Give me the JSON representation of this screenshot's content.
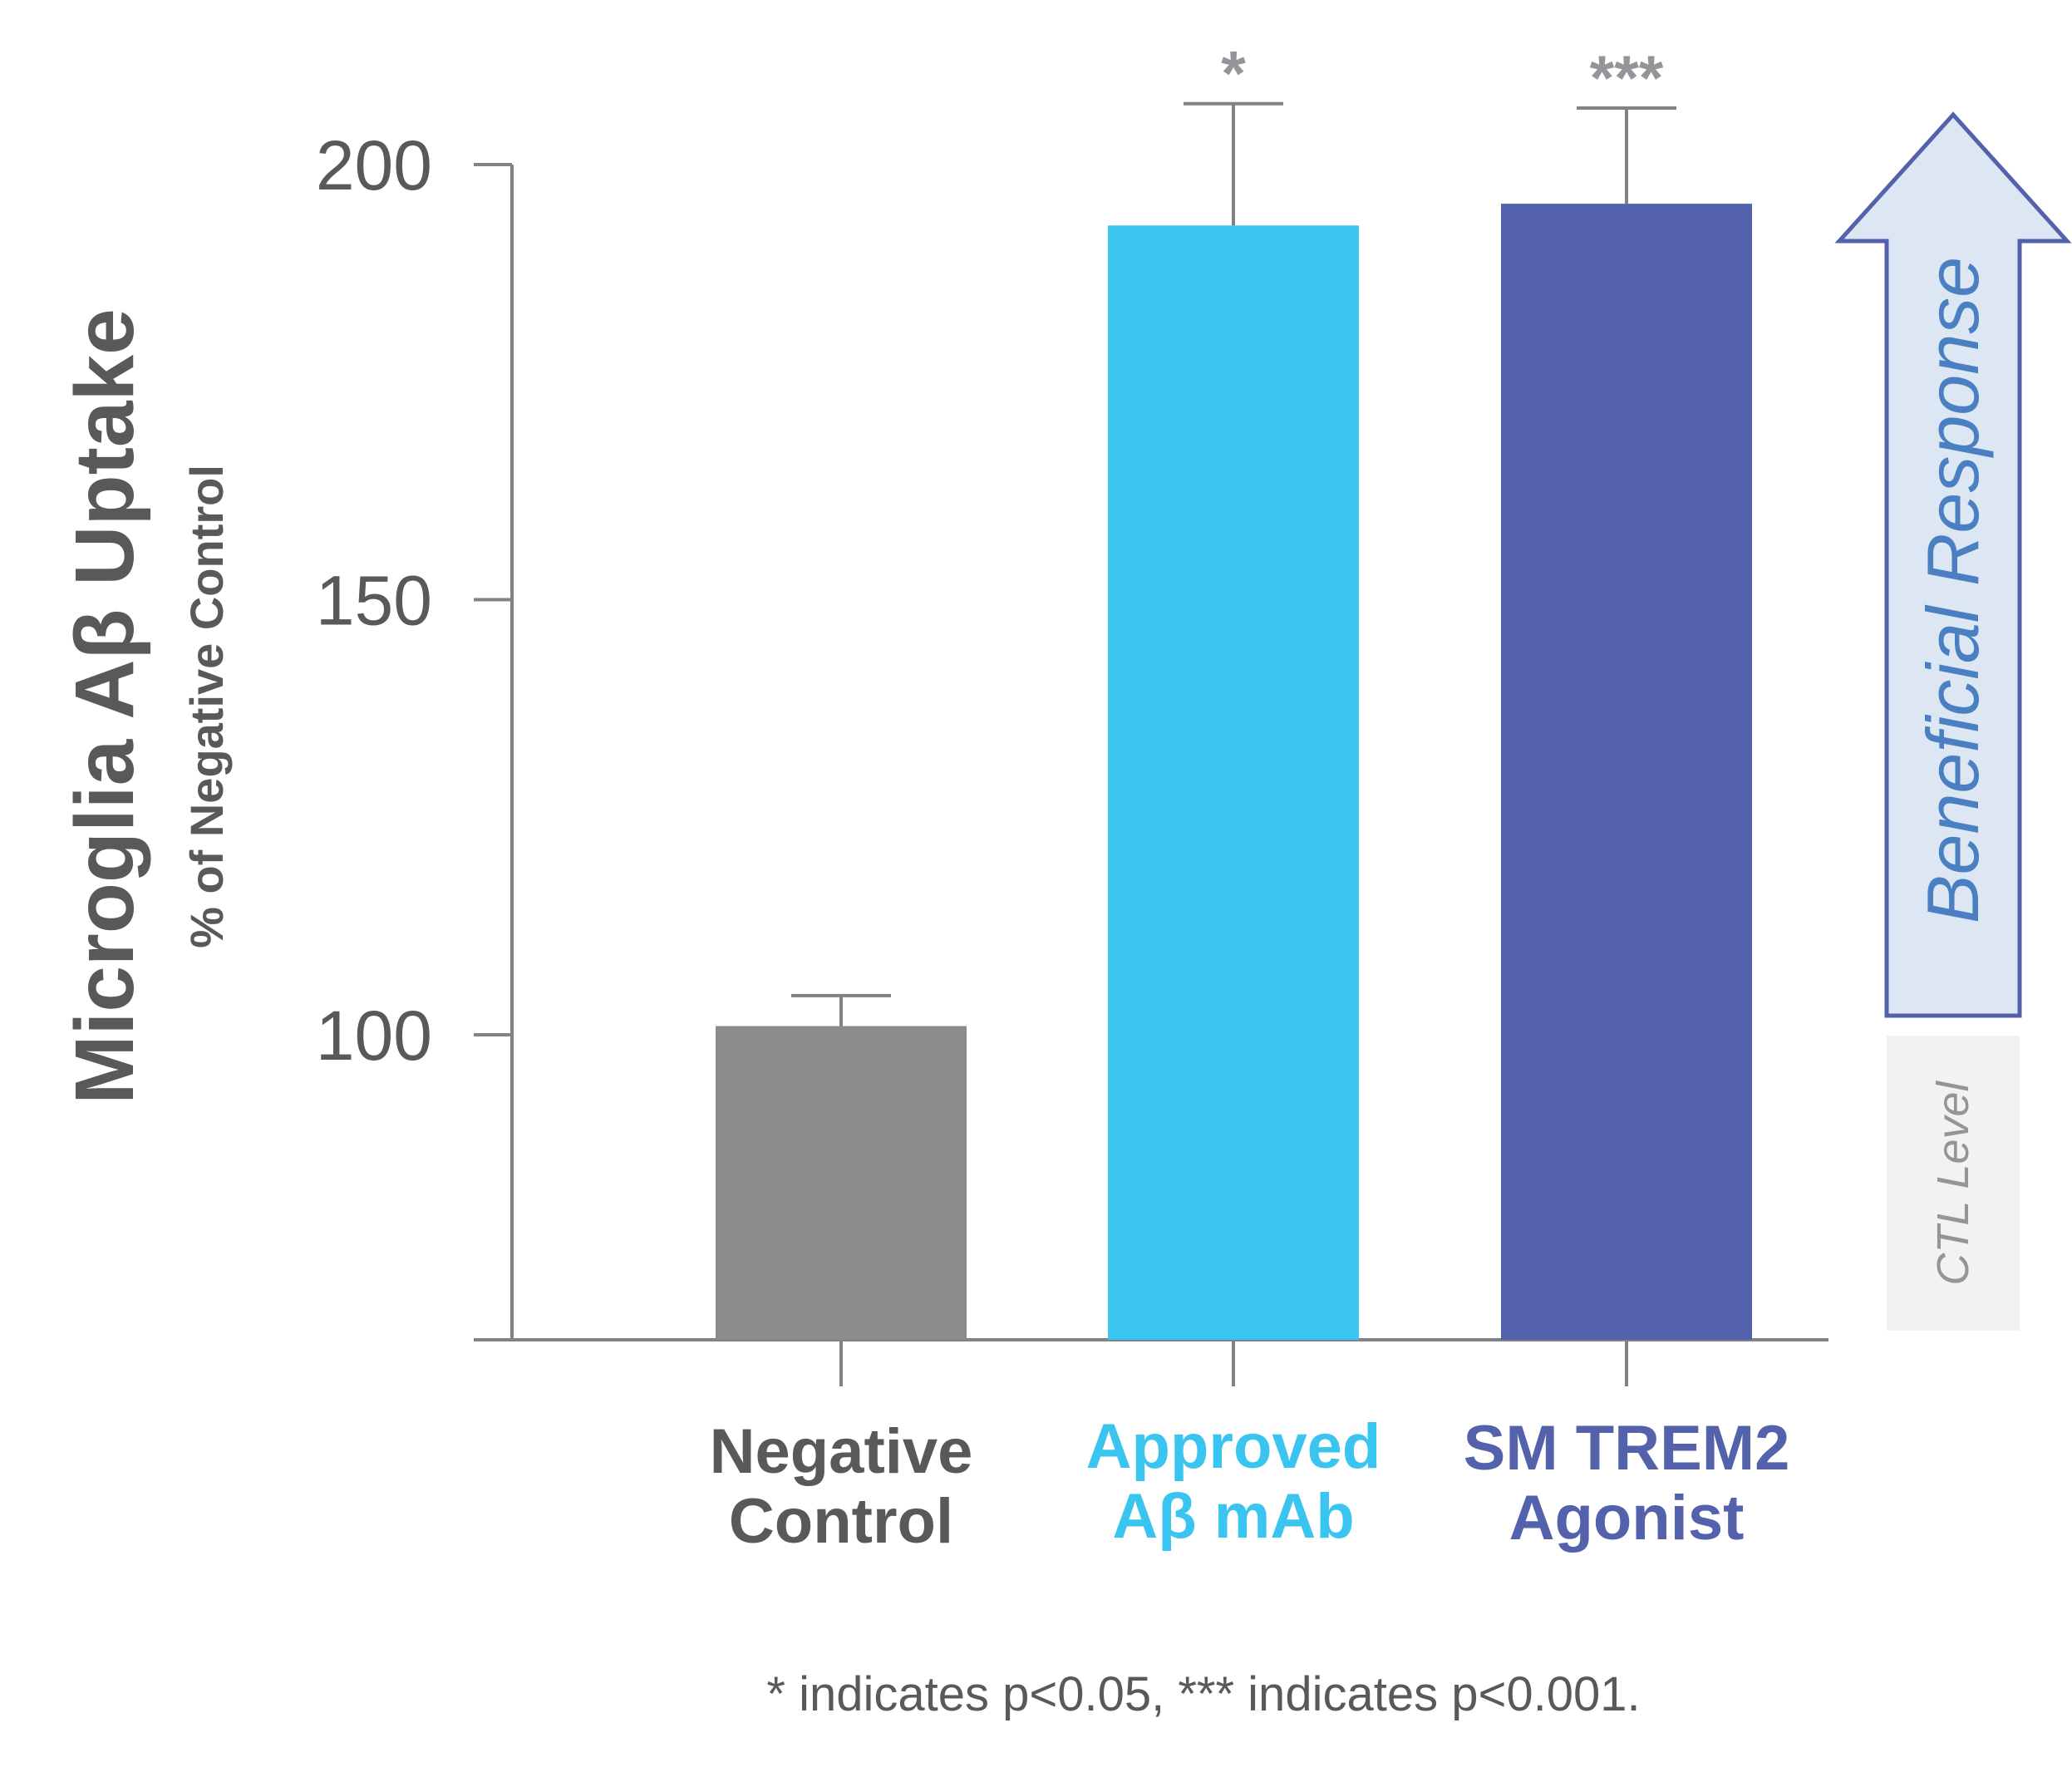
{
  "chart_data": {
    "type": "bar",
    "title": "",
    "ylabel": "Microglia Aβ Uptake",
    "ylabel_sub": "% of Negative Control",
    "ylim": [
      65,
      205
    ],
    "yticks": [
      100,
      150,
      200
    ],
    "categories": [
      {
        "lines": [
          "Negative",
          "Control"
        ],
        "color": "#58595b"
      },
      {
        "lines": [
          "Approved",
          "Aβ mAb"
        ],
        "color": "#39c5f0"
      },
      {
        "lines": [
          "SM TREM2",
          "Agonist"
        ],
        "color": "#5461ab"
      }
    ],
    "values": [
      101,
      193,
      195.5
    ],
    "errors": [
      3.5,
      14,
      11
    ],
    "bar_colors": [
      "#8c8c8c",
      "#39c5f0",
      "#5461ab"
    ],
    "significance": [
      "",
      "*",
      "***"
    ],
    "grid": false,
    "legend": "none"
  },
  "annotations": {
    "arrow_label": "Beneficial Response",
    "ctl_label": "CTL Level",
    "arrow_fill": "#dde6f3",
    "arrow_stroke": "#5461ab",
    "ctl_fill": "#f2f2f2"
  },
  "footnote": "* indicates p<0.05, *** indicates p<0.001."
}
